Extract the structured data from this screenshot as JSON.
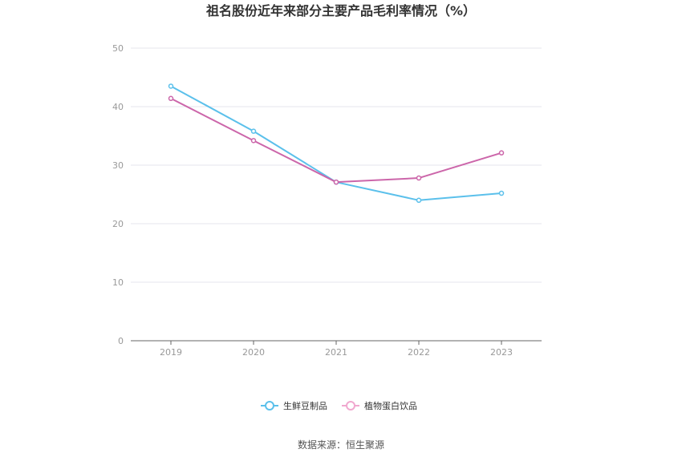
{
  "chart_data": {
    "type": "line",
    "title": "祖名股份近年来部分主要产品毛利率情况（%）",
    "xlabel": "",
    "ylabel": "",
    "categories": [
      "2019",
      "2020",
      "2021",
      "2022",
      "2023"
    ],
    "ylim": [
      0,
      50
    ],
    "yticks": [
      0,
      10,
      20,
      30,
      40,
      50
    ],
    "grid": true,
    "legend_position": "bottom-center",
    "series": [
      {
        "name": "生鲜豆制品",
        "color": "#5bc0eb",
        "values": [
          43.5,
          35.8,
          27.1,
          24.0,
          25.2
        ]
      },
      {
        "name": "植物蛋白饮品",
        "color": "#cc66aa",
        "values": [
          41.4,
          34.2,
          27.1,
          27.8,
          32.1
        ]
      }
    ]
  },
  "source": "数据来源：恒生聚源"
}
